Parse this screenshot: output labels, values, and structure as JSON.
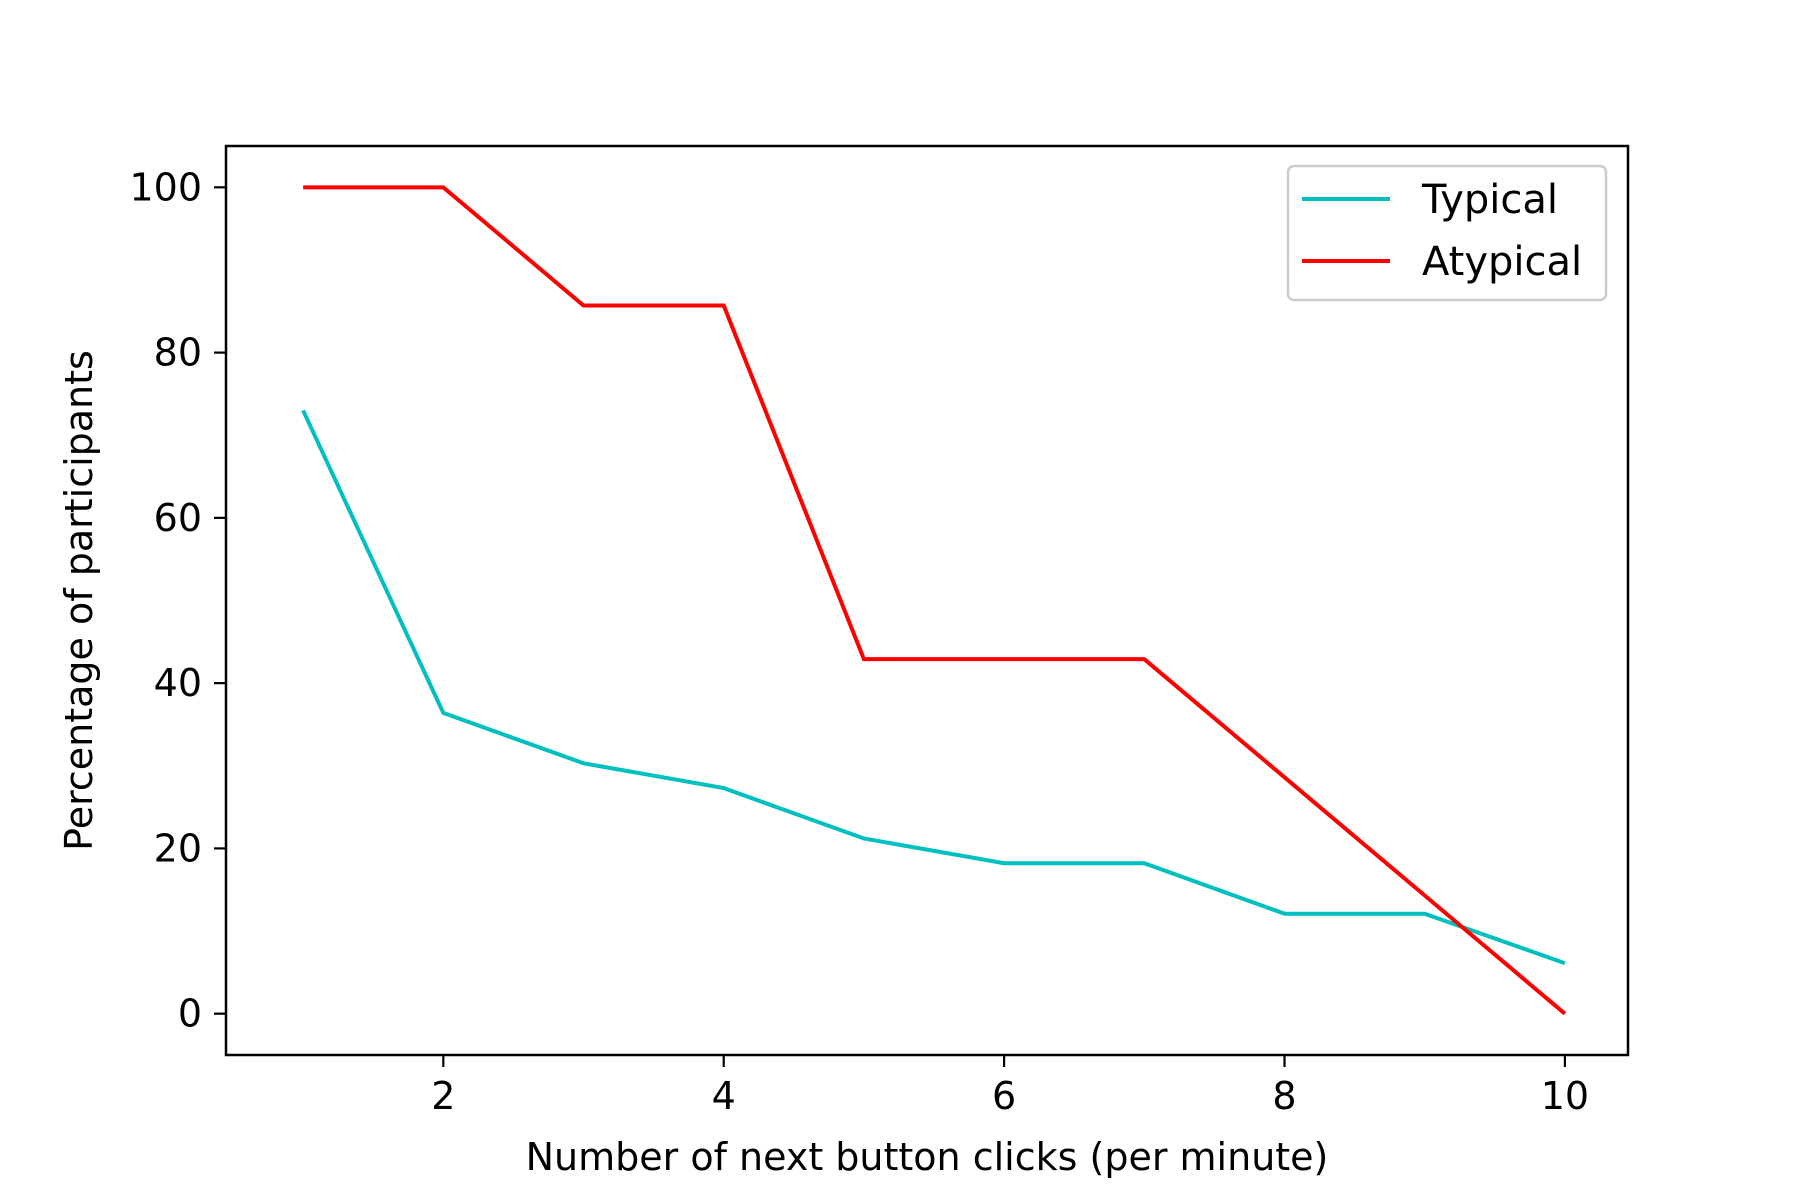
{
  "chart_data": {
    "type": "line",
    "title": "",
    "xlabel": "Number of next button clicks (per minute)",
    "ylabel": "Percentage of participants",
    "xlim": [
      0.45,
      10.45
    ],
    "ylim": [
      -5,
      105
    ],
    "xticks": [
      2,
      4,
      6,
      8,
      10
    ],
    "yticks": [
      0,
      20,
      40,
      60,
      80,
      100
    ],
    "grid": false,
    "legend_position": "top-right",
    "x": [
      1,
      2,
      3,
      4,
      5,
      6,
      7,
      8,
      9,
      10
    ],
    "series": [
      {
        "name": "Typical",
        "color": "#00bfbf",
        "values": [
          73,
          36.4,
          30.3,
          27.3,
          21.2,
          18.2,
          18.2,
          12.1,
          12.1,
          6.1
        ]
      },
      {
        "name": "Atypical",
        "color": "#ff0000",
        "values": [
          100,
          100,
          85.7,
          85.7,
          42.9,
          42.9,
          42.9,
          28.6,
          14.3,
          0
        ]
      }
    ]
  }
}
